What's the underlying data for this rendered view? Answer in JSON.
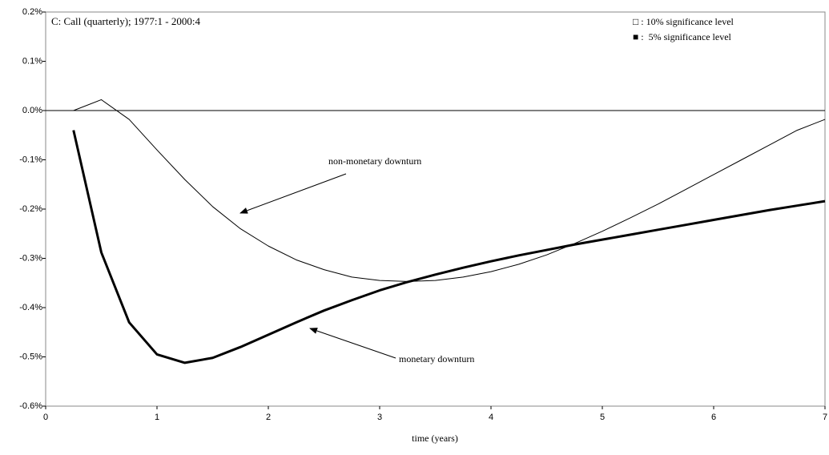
{
  "chart_data": {
    "type": "line",
    "title": "C: Call (quarterly); 1977:1 - 2000:4",
    "x_label": "time (years)",
    "legend_notes": [
      "□ : 10% significance level",
      "■ :  5% significance level"
    ],
    "x": [
      0.25,
      0.5,
      0.75,
      1,
      1.25,
      1.5,
      1.75,
      2,
      2.25,
      2.5,
      2.75,
      3,
      3.25,
      3.5,
      3.75,
      4,
      4.25,
      4.5,
      4.75,
      5,
      5.25,
      5.5,
      5.75,
      6,
      6.25,
      6.5,
      6.75,
      7
    ],
    "series": [
      {
        "name": "non-monetary downturn",
        "color": "#000000",
        "width": 1,
        "values": [
          0.0,
          0.022,
          -0.018,
          -0.08,
          -0.14,
          -0.195,
          -0.24,
          -0.275,
          -0.303,
          -0.323,
          -0.338,
          -0.345,
          -0.347,
          -0.345,
          -0.338,
          -0.327,
          -0.312,
          -0.293,
          -0.27,
          -0.245,
          -0.218,
          -0.19,
          -0.16,
          -0.13,
          -0.1,
          -0.07,
          -0.04,
          -0.018
        ]
      },
      {
        "name": "monetary downturn",
        "color": "#000000",
        "width": 3,
        "values": [
          -0.04,
          -0.288,
          -0.43,
          -0.495,
          -0.512,
          -0.502,
          -0.48,
          -0.455,
          -0.43,
          -0.406,
          -0.385,
          -0.365,
          -0.348,
          -0.333,
          -0.319,
          -0.306,
          -0.294,
          -0.283,
          -0.272,
          -0.262,
          -0.252,
          -0.242,
          -0.232,
          -0.222,
          -0.212,
          -0.202,
          -0.193,
          -0.184
        ]
      }
    ],
    "xlim": [
      0,
      7
    ],
    "xticks": [
      0,
      1,
      2,
      3,
      4,
      5,
      6,
      7
    ],
    "ylim": [
      -0.6,
      0.2
    ],
    "yticks": [
      {
        "value": 0.2,
        "label": "0.2%"
      },
      {
        "value": 0.1,
        "label": "0.1%"
      },
      {
        "value": 0.0,
        "label": "0.0%"
      },
      {
        "value": -0.1,
        "label": "-0.1%"
      },
      {
        "value": -0.2,
        "label": "-0.2%"
      },
      {
        "value": -0.3,
        "label": "-0.3%"
      },
      {
        "value": -0.4,
        "label": "-0.4%"
      },
      {
        "value": -0.5,
        "label": "-0.5%"
      },
      {
        "value": -0.6,
        "label": "-0.6%"
      }
    ],
    "grid": false
  }
}
